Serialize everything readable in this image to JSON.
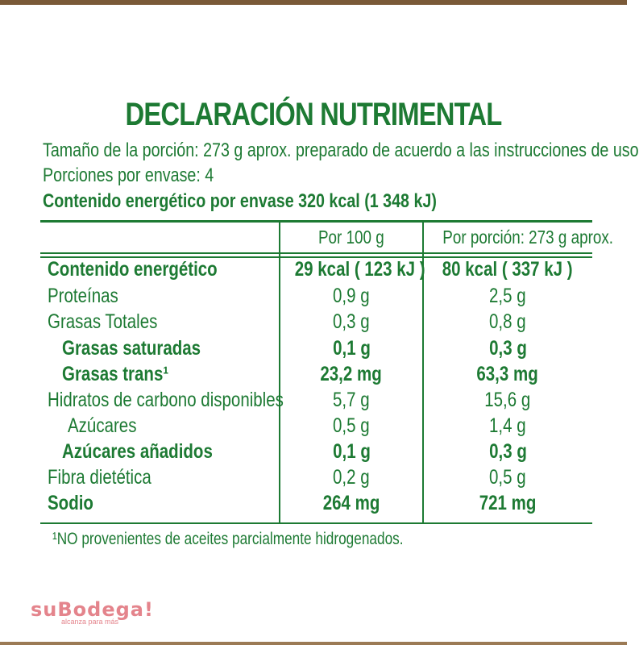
{
  "title": "DECLARACIÓN NUTRIMENTAL",
  "serving_size": "Tamaño de la porción: 273 g aprox. preparado de acuerdo a las instrucciones de uso",
  "servings_per_container": "Porciones por envase: 4",
  "energy_per_container": "Contenido energético por envase 320 kcal (1 348 kJ)",
  "table": {
    "headers": [
      "",
      "Por 100 g",
      "Por porción: 273 g aprox."
    ],
    "rows": [
      {
        "label": "Contenido energético",
        "per100": "29 kcal ( 123 kJ )",
        "perServing": "80 kcal ( 337 kJ )"
      },
      {
        "label": "Proteínas",
        "per100": "0,9 g",
        "perServing": "2,5 g"
      },
      {
        "label": "Grasas Totales",
        "per100": "0,3 g",
        "perServing": "0,8 g"
      },
      {
        "label": "Grasas saturadas",
        "per100": "0,1 g",
        "perServing": "0,3 g"
      },
      {
        "label": "Grasas trans¹",
        "per100": "23,2 mg",
        "perServing": "63,3 mg"
      },
      {
        "label": "Hidratos de carbono disponibles",
        "per100": "5,7 g",
        "perServing": "15,6 g"
      },
      {
        "label": "Azúcares",
        "per100": "0,5 g",
        "perServing": "1,4 g"
      },
      {
        "label": "Azúcares añadidos",
        "per100": "0,1 g",
        "perServing": "0,3 g"
      },
      {
        "label": "Fibra dietética",
        "per100": "0,2 g",
        "perServing": "0,5 g"
      },
      {
        "label": "Sodio",
        "per100": "264 mg",
        "perServing": "721 mg"
      }
    ]
  },
  "footnote": "¹NO provenientes de aceites parcialmente hidrogenados.",
  "brand": {
    "name": "suBodega!",
    "tagline": "alcanza para más"
  },
  "colors": {
    "text_green": "#1d7a33",
    "brand_pink": "#e4848c"
  }
}
